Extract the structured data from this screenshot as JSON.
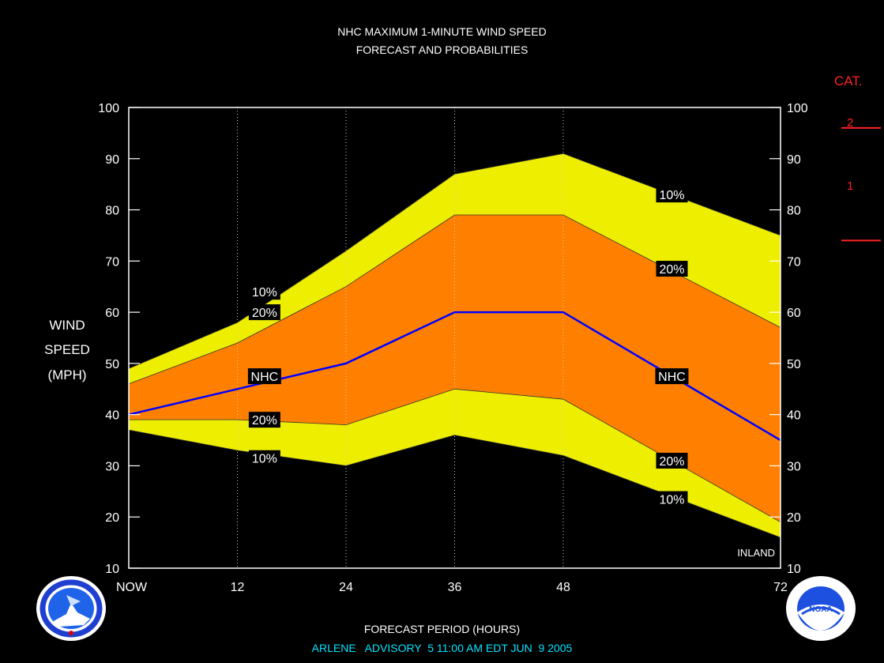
{
  "title_line1": "NHC MAXIMUM 1-MINUTE WIND SPEED",
  "title_line2": "FORECAST AND PROBABILITIES",
  "category": {
    "header": "CAT.",
    "labels": [
      {
        "text": "2",
        "color": "#ff2222"
      },
      {
        "text": "1",
        "color": "#ff2222"
      }
    ],
    "thresholds_mph": [
      96,
      74
    ]
  },
  "y_axis_label": [
    "WIND",
    "SPEED",
    "(MPH)"
  ],
  "footer_line1": "FORECAST PERIOD (HOURS)",
  "footer_line2": "ARLENE   ADVISORY  5 11:00 AM EDT JUN  9 2005",
  "inland_label": "INLAND",
  "logos": {
    "left": "nws-logo-icon",
    "right": "noaa-logo-icon",
    "right_text": "NOAA"
  },
  "colors": {
    "band_10": "#eeee00",
    "band_20": "#ff8000",
    "nhc_line": "#0000ff",
    "category": "#ff2222",
    "footer2": "#00e5ff"
  },
  "chart_data": {
    "type": "area",
    "title": "NHC MAXIMUM 1-MINUTE WIND SPEED FORECAST AND PROBABILITIES",
    "xlabel": "FORECAST PERIOD (HOURS)",
    "ylabel": "WIND SPEED (MPH)",
    "x": [
      0,
      12,
      24,
      36,
      48,
      72
    ],
    "x_tick_labels": [
      "NOW",
      "12",
      "24",
      "36",
      "48",
      "72"
    ],
    "ylim": [
      10,
      100
    ],
    "y_ticks": [
      10,
      20,
      30,
      40,
      50,
      60,
      70,
      80,
      90,
      100
    ],
    "series": [
      {
        "name": "10%",
        "values": [
          49,
          58,
          72,
          87,
          91,
          75
        ]
      },
      {
        "name": "20%",
        "values": [
          46,
          54,
          65,
          79,
          79,
          57
        ]
      },
      {
        "name": "NHC",
        "values": [
          40,
          45,
          50,
          60,
          60,
          35
        ]
      },
      {
        "name": "20%",
        "values": [
          39,
          39,
          38,
          45,
          43,
          19
        ]
      },
      {
        "name": "10%",
        "values": [
          37,
          33,
          30,
          36,
          32,
          16
        ]
      }
    ],
    "band_labels": [
      {
        "text": "10%",
        "x": 15,
        "y": 64
      },
      {
        "text": "20%",
        "x": 15,
        "y": 60
      },
      {
        "text": "NHC",
        "x": 15,
        "y": 47.5
      },
      {
        "text": "20%",
        "x": 15,
        "y": 39
      },
      {
        "text": "10%",
        "x": 15,
        "y": 31.5
      },
      {
        "text": "10%",
        "x": 60,
        "y": 83
      },
      {
        "text": "20%",
        "x": 60,
        "y": 68.5
      },
      {
        "text": "NHC",
        "x": 60,
        "y": 47.5
      },
      {
        "text": "20%",
        "x": 60,
        "y": 31
      },
      {
        "text": "10%",
        "x": 60,
        "y": 23.5
      }
    ],
    "grid": "vertical-dotted"
  }
}
